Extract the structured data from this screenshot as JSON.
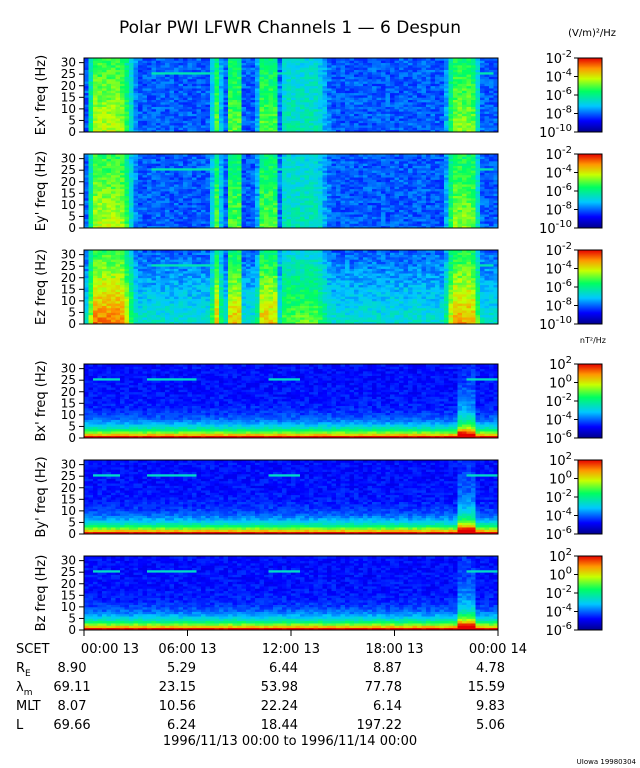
{
  "chart_data": {
    "type": "heatmap",
    "title": "Polar PWI LFWR Channels 1 — 6 Despun",
    "x_range": [
      "1996-11-13 00:00",
      "1996-11-14 00:00"
    ],
    "x_tick_labels": [
      "00:00 13",
      "06:00 13",
      "12:00 13",
      "18:00 13",
      "00:00 14"
    ],
    "y_range": [
      0,
      32
    ],
    "y_ticks": [
      0,
      5,
      10,
      15,
      20,
      25,
      30
    ],
    "panels": [
      {
        "ylabel": "Ex' freq (Hz)",
        "group": "E"
      },
      {
        "ylabel": "Ey' freq (Hz)",
        "group": "E"
      },
      {
        "ylabel": "Ez freq (Hz)",
        "group": "E"
      },
      {
        "ylabel": "Bx' freq (Hz)",
        "group": "B"
      },
      {
        "ylabel": "By' freq (Hz)",
        "group": "B"
      },
      {
        "ylabel": "Bz freq (Hz)",
        "group": "B"
      }
    ],
    "colorbars": {
      "E": {
        "unit": "(V/m)²/Hz",
        "exponents": [
          -2,
          -4,
          -6,
          -8,
          -10
        ],
        "log_range": [
          -10,
          -2
        ]
      },
      "B": {
        "unit": "nT²/Hz",
        "exponents": [
          2,
          0,
          -2,
          -4,
          -6
        ],
        "log_range": [
          -6,
          2
        ]
      }
    },
    "ephemeris": {
      "row_labels": [
        "SCET",
        "R",
        "λ",
        "MLT",
        "L"
      ],
      "row_label_subscripts": [
        "",
        "E",
        "m",
        "",
        ""
      ],
      "rows": [
        [
          "8.90",
          "5.29",
          "6.44",
          "8.87",
          "4.78"
        ],
        [
          "69.11",
          "23.15",
          "53.98",
          "77.78",
          "15.59"
        ],
        [
          "8.07",
          "10.56",
          "22.24",
          "6.14",
          "9.83"
        ],
        [
          "69.66",
          "6.24",
          "18.44",
          "197.22",
          "5.06"
        ]
      ]
    },
    "date_range_text": "1996/11/13 00:00 to 1996/11/14 00:00",
    "credit": "UIowa 19980304"
  }
}
